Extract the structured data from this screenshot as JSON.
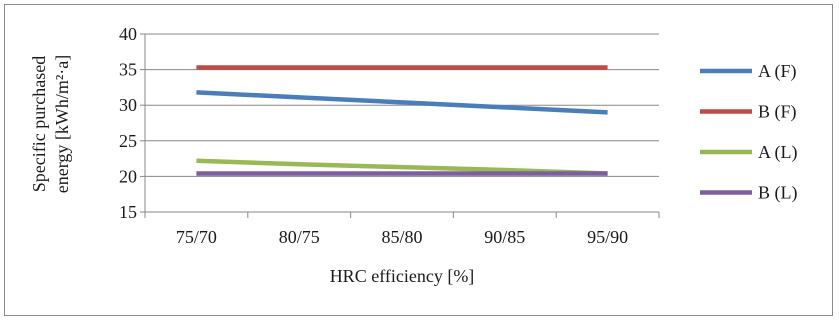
{
  "chart_data": {
    "type": "line",
    "title": "",
    "xlabel": "HRC efficiency  [%]",
    "ylabel_line1": "Specific purchased",
    "ylabel_line2": "energy  [kWh/m²·a]",
    "categories": [
      "75/70",
      "80/75",
      "85/80",
      "90/85",
      "95/90"
    ],
    "ylim": [
      15,
      40
    ],
    "yticks": [
      15,
      20,
      25,
      30,
      35,
      40
    ],
    "grid": "horizontal",
    "legend_position": "right",
    "series": [
      {
        "name": "A (F)",
        "color": "#4a7ebb",
        "values": [
          31.8,
          31.1,
          30.4,
          29.7,
          29.0
        ]
      },
      {
        "name": "B (F)",
        "color": "#be4b48",
        "values": [
          35.3,
          35.3,
          35.3,
          35.3,
          35.3
        ]
      },
      {
        "name": "A (L)",
        "color": "#98b954",
        "values": [
          22.2,
          21.7,
          21.3,
          20.9,
          20.4
        ]
      },
      {
        "name": "B (L)",
        "color": "#7d5fa0",
        "values": [
          20.4,
          20.4,
          20.4,
          20.4,
          20.4
        ]
      }
    ]
  }
}
